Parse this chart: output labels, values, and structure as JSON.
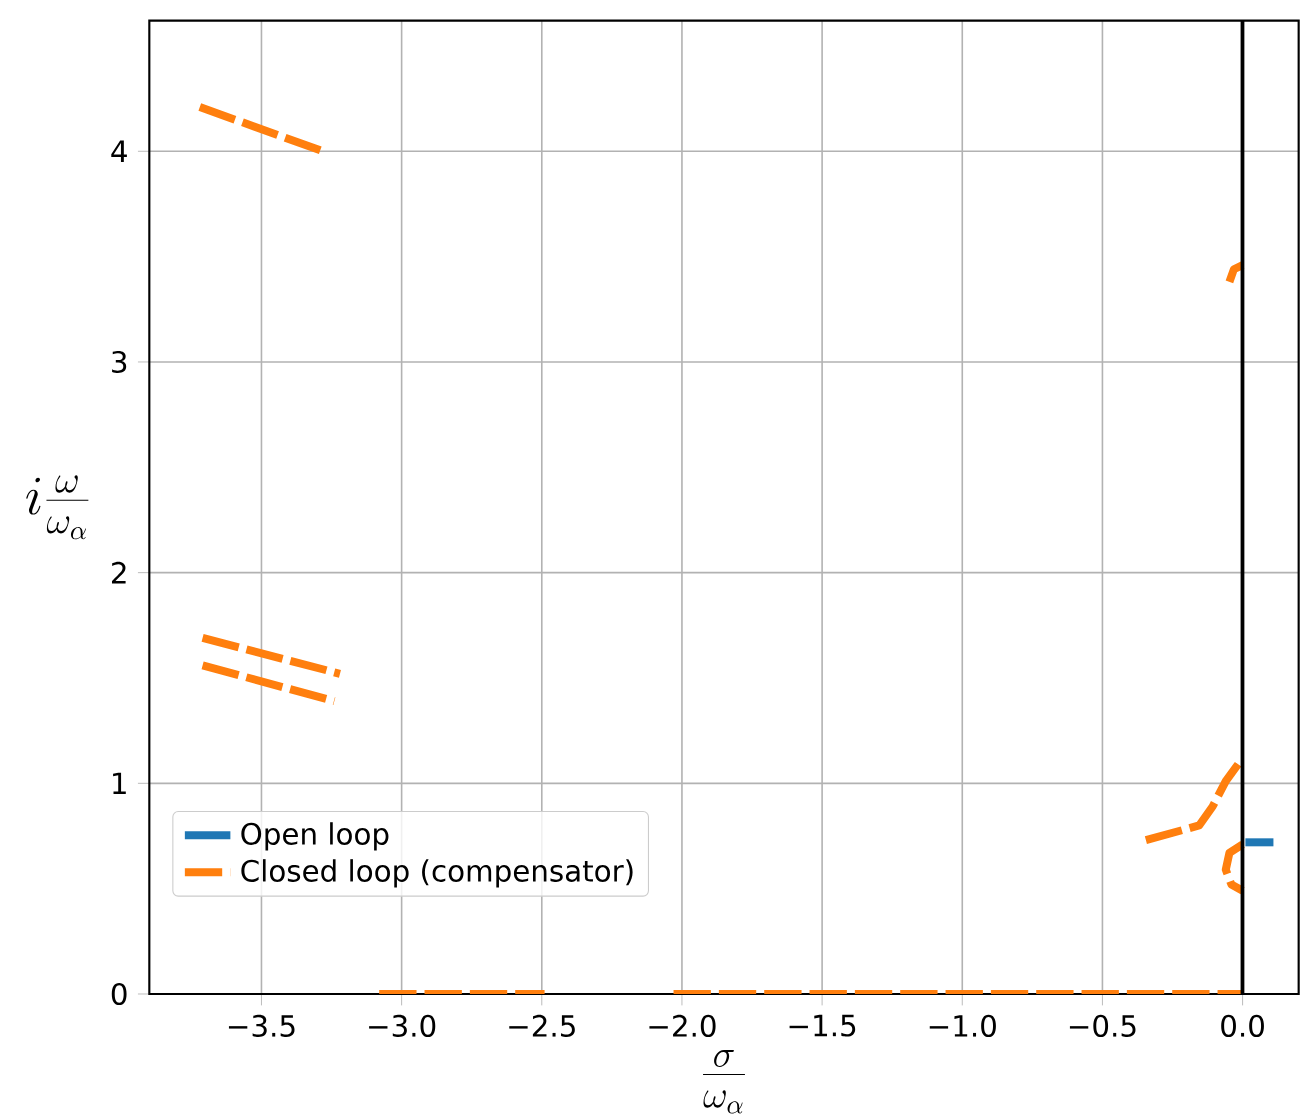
{
  "chart_data": {
    "type": "line",
    "xlabel": "\\frac{\\sigma}{\\omega_\\alpha}",
    "ylabel": "i\\frac{\\omega}{\\omega_\\alpha}",
    "series": [
      {
        "name": "Open loop",
        "color": "#1f77b4",
        "line_style": "solid",
        "x": [
          0.01,
          0.11
        ],
        "values": [
          0.72,
          0.72
        ]
      },
      {
        "name": "Closed loop (compensator)",
        "color": "#ff7f0e",
        "line_style": "dashed",
        "x": [
          -3.72,
          -3.28,
          null,
          -3.71,
          -3.22,
          null,
          -3.71,
          -3.24,
          null,
          -3.08,
          -2.49,
          null,
          -2.03,
          0,
          null,
          -0.345,
          -0.155,
          -0.107,
          -0.06,
          0,
          null,
          0,
          -0.047,
          -0.06,
          -0.04,
          0,
          null,
          -0.047,
          -0.031,
          0
        ],
        "values": [
          4.21,
          4.0,
          null,
          1.69,
          1.52,
          null,
          1.56,
          1.39,
          null,
          0,
          0,
          null,
          0,
          0,
          null,
          0.73,
          0.8,
          0.89,
          1.01,
          1.12,
          null,
          0.71,
          0.67,
          0.59,
          0.52,
          0.49,
          null,
          3.38,
          3.44,
          3.46
        ]
      }
    ],
    "xlim": [
      -3.9,
      0.2
    ],
    "ylim": [
      0,
      4.62
    ],
    "xticks": [
      {
        "value": -3.5,
        "label": "−3.5"
      },
      {
        "value": -3,
        "label": "−3.0"
      },
      {
        "value": -2.5,
        "label": "−2.5"
      },
      {
        "value": -2,
        "label": "−2.0"
      },
      {
        "value": -1.5,
        "label": "−1.5"
      },
      {
        "value": -1,
        "label": "−1.0"
      },
      {
        "value": -0.5,
        "label": "−0.5"
      },
      {
        "value": 0,
        "label": "0.0"
      }
    ],
    "yticks": [
      0,
      1,
      2,
      3,
      4
    ],
    "ref_lines": [
      {
        "axis": "x",
        "value": 0,
        "color": "#000000"
      }
    ],
    "grid": true,
    "legend": "bottom left"
  }
}
